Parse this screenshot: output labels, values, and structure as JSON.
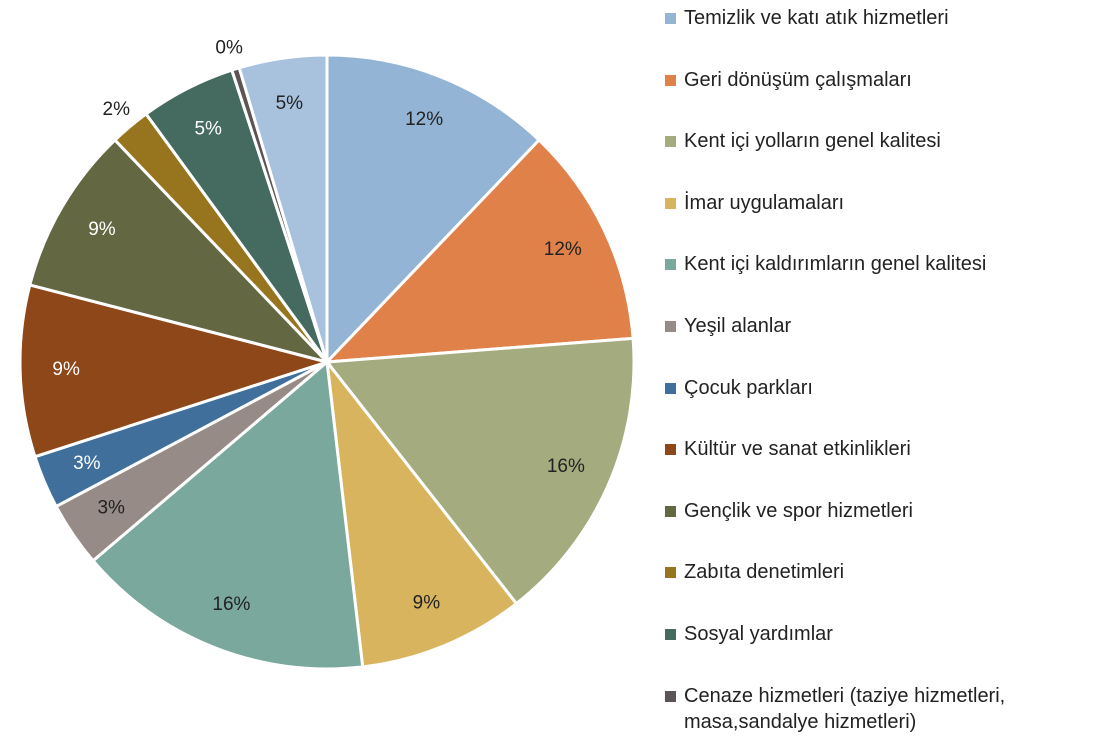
{
  "chart_data": {
    "type": "pie",
    "categories": [
      "Temizlik ve katı atık hizmetleri",
      "Geri  dönüşüm çalışmaları",
      "Kent içi yolların genel kalitesi",
      "İmar uygulamaları",
      "Kent içi kaldırımların genel kalitesi",
      "Yeşil alanlar",
      "Çocuk parkları",
      "Kültür ve sanat etkinlikleri",
      "Gençlik ve spor hizmetleri",
      "Zabıta denetimleri",
      "Sosyal yardımlar",
      "Cenaze hizmetleri (taziye hizmetleri, masa,sandalye hizmetleri)",
      null
    ],
    "values": [
      12.1,
      11.6,
      15.6,
      8.7,
      15.6,
      3.4,
      2.8,
      9.0,
      8.8,
      2.1,
      5.0,
      0.4,
      4.6
    ],
    "value_labels": [
      "12%",
      "12%",
      "16%",
      "9%",
      "16%",
      "3%",
      "3%",
      "9%",
      "9%",
      "2%",
      "5%",
      "0%",
      "5%"
    ],
    "colors": [
      "#93b4d4",
      "#e0814a",
      "#a3ab7f",
      "#d9b45e",
      "#7aa89d",
      "#968b87",
      "#3f6f9a",
      "#8e4719",
      "#636842",
      "#97751f",
      "#456a5f",
      "#5d5555",
      "#a8c1dd"
    ],
    "legend": "right"
  }
}
